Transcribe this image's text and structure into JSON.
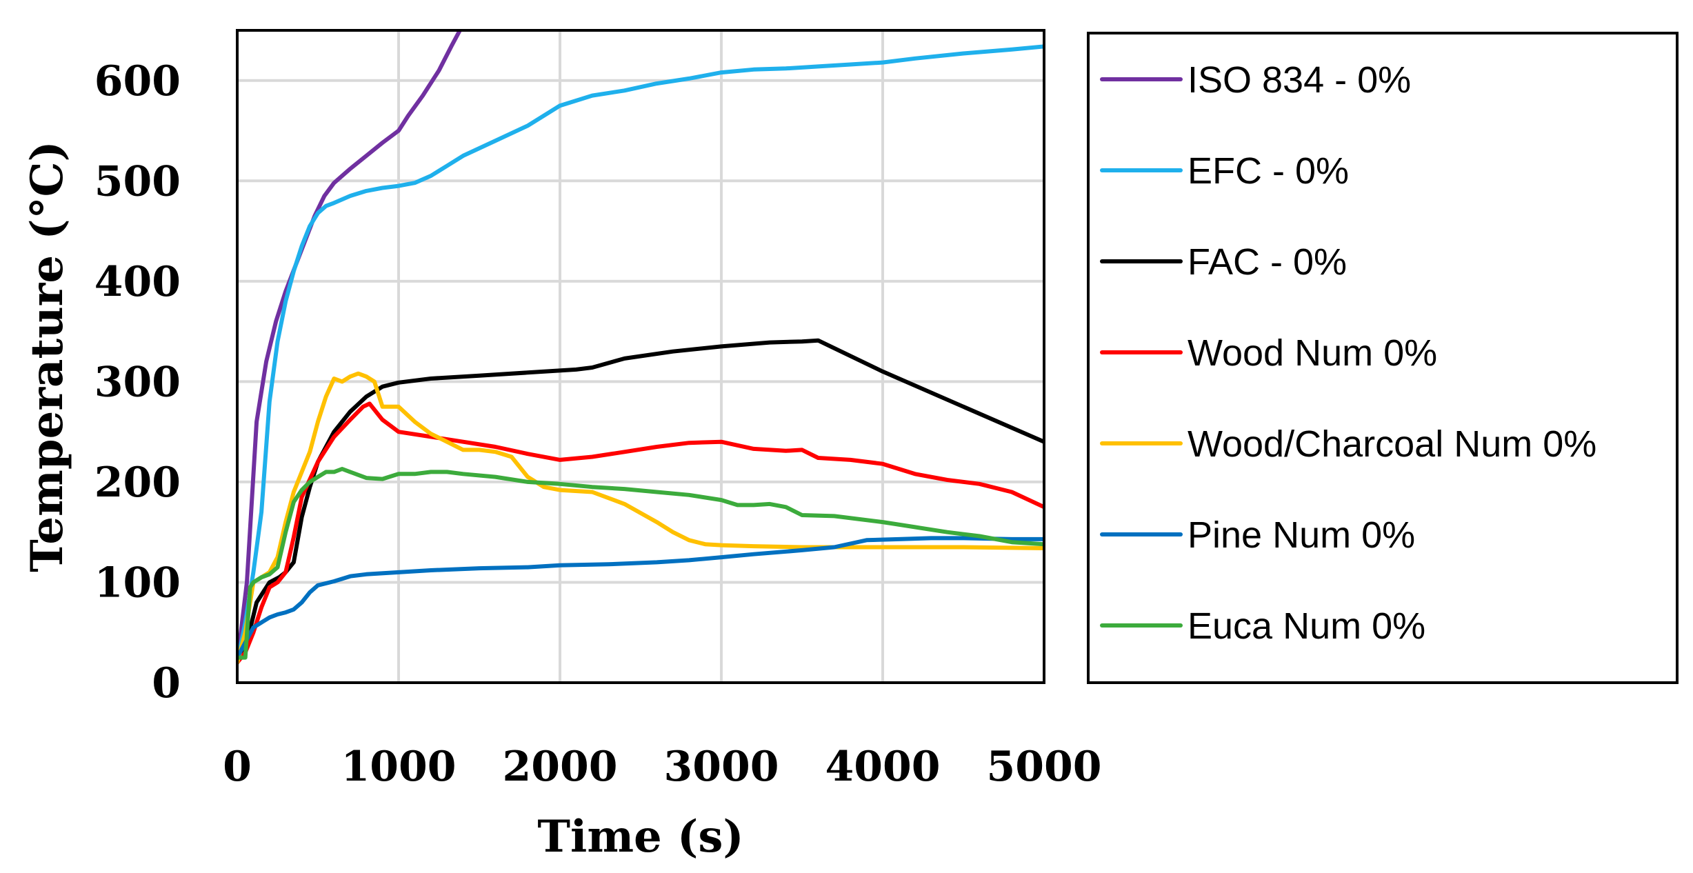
{
  "chart_data": {
    "type": "line",
    "title": "",
    "xlabel": "Time (s)",
    "ylabel": "Temperature (°C)",
    "xlim": [
      0,
      5000
    ],
    "ylim": [
      0,
      650
    ],
    "x_ticks": [
      0,
      1000,
      2000,
      3000,
      4000,
      5000
    ],
    "y_ticks": [
      0,
      100,
      200,
      300,
      400,
      500,
      600
    ],
    "x_tick_labels": [
      "0",
      "1000",
      "2000",
      "3000",
      "4000",
      "5000"
    ],
    "y_tick_labels": [
      "0",
      "100",
      "200",
      "300",
      "400",
      "500",
      "600"
    ],
    "grid": true,
    "legend_position": "right",
    "series": [
      {
        "name": "ISO 834 - 0%",
        "color": "#7030a0",
        "points": [
          [
            0,
            20
          ],
          [
            60,
            100
          ],
          [
            120,
            260
          ],
          [
            180,
            320
          ],
          [
            240,
            360
          ],
          [
            300,
            390
          ],
          [
            360,
            415
          ],
          [
            420,
            440
          ],
          [
            480,
            465
          ],
          [
            540,
            485
          ],
          [
            600,
            498
          ],
          [
            700,
            512
          ],
          [
            800,
            525
          ],
          [
            900,
            538
          ],
          [
            1000,
            550
          ],
          [
            1060,
            565
          ],
          [
            1150,
            585
          ],
          [
            1250,
            610
          ],
          [
            1330,
            635
          ],
          [
            1380,
            650
          ]
        ]
      },
      {
        "name": "EFC - 0%",
        "color": "#1fb0ec",
        "points": [
          [
            0,
            20
          ],
          [
            50,
            60
          ],
          [
            100,
            110
          ],
          [
            150,
            170
          ],
          [
            200,
            280
          ],
          [
            250,
            340
          ],
          [
            300,
            380
          ],
          [
            350,
            410
          ],
          [
            400,
            435
          ],
          [
            450,
            455
          ],
          [
            500,
            468
          ],
          [
            550,
            475
          ],
          [
            600,
            478
          ],
          [
            700,
            485
          ],
          [
            800,
            490
          ],
          [
            900,
            493
          ],
          [
            1000,
            495
          ],
          [
            1100,
            498
          ],
          [
            1200,
            505
          ],
          [
            1300,
            515
          ],
          [
            1400,
            525
          ],
          [
            1600,
            540
          ],
          [
            1800,
            555
          ],
          [
            2000,
            575
          ],
          [
            2200,
            585
          ],
          [
            2400,
            590
          ],
          [
            2600,
            597
          ],
          [
            2800,
            602
          ],
          [
            3000,
            608
          ],
          [
            3200,
            611
          ],
          [
            3400,
            612
          ],
          [
            3600,
            614
          ],
          [
            3800,
            616
          ],
          [
            4000,
            618
          ],
          [
            4200,
            622
          ],
          [
            4500,
            627
          ],
          [
            4800,
            631
          ],
          [
            5000,
            634
          ]
        ]
      },
      {
        "name": "FAC - 0%",
        "color": "#000000",
        "points": [
          [
            0,
            20
          ],
          [
            60,
            40
          ],
          [
            120,
            80
          ],
          [
            200,
            100
          ],
          [
            260,
            105
          ],
          [
            300,
            110
          ],
          [
            350,
            120
          ],
          [
            400,
            165
          ],
          [
            450,
            195
          ],
          [
            500,
            220
          ],
          [
            600,
            250
          ],
          [
            700,
            270
          ],
          [
            800,
            285
          ],
          [
            900,
            295
          ],
          [
            1000,
            299
          ],
          [
            1200,
            303
          ],
          [
            1500,
            306
          ],
          [
            1800,
            309
          ],
          [
            2100,
            312
          ],
          [
            2200,
            314
          ],
          [
            2400,
            323
          ],
          [
            2700,
            330
          ],
          [
            3000,
            335
          ],
          [
            3300,
            339
          ],
          [
            3500,
            340
          ],
          [
            3600,
            341
          ],
          [
            4000,
            310
          ],
          [
            4500,
            275
          ],
          [
            5000,
            240
          ]
        ]
      },
      {
        "name": "Wood Num 0%",
        "color": "#ff0000",
        "points": [
          [
            0,
            20
          ],
          [
            50,
            30
          ],
          [
            100,
            50
          ],
          [
            150,
            75
          ],
          [
            200,
            95
          ],
          [
            250,
            100
          ],
          [
            300,
            110
          ],
          [
            350,
            145
          ],
          [
            400,
            185
          ],
          [
            500,
            220
          ],
          [
            600,
            245
          ],
          [
            700,
            262
          ],
          [
            780,
            275
          ],
          [
            820,
            278
          ],
          [
            900,
            262
          ],
          [
            1000,
            250
          ],
          [
            1200,
            245
          ],
          [
            1400,
            240
          ],
          [
            1600,
            235
          ],
          [
            1800,
            228
          ],
          [
            2000,
            222
          ],
          [
            2200,
            225
          ],
          [
            2400,
            230
          ],
          [
            2600,
            235
          ],
          [
            2800,
            239
          ],
          [
            3000,
            240
          ],
          [
            3200,
            233
          ],
          [
            3400,
            231
          ],
          [
            3500,
            232
          ],
          [
            3600,
            224
          ],
          [
            3800,
            222
          ],
          [
            4000,
            218
          ],
          [
            4200,
            208
          ],
          [
            4400,
            202
          ],
          [
            4600,
            198
          ],
          [
            4800,
            190
          ],
          [
            5000,
            175
          ]
        ]
      },
      {
        "name": "Wood/Charcoal Num 0%",
        "color": "#ffc000",
        "points": [
          [
            0,
            20
          ],
          [
            50,
            50
          ],
          [
            100,
            100
          ],
          [
            150,
            105
          ],
          [
            200,
            110
          ],
          [
            250,
            125
          ],
          [
            300,
            160
          ],
          [
            350,
            190
          ],
          [
            400,
            210
          ],
          [
            450,
            230
          ],
          [
            500,
            260
          ],
          [
            550,
            285
          ],
          [
            600,
            303
          ],
          [
            650,
            300
          ],
          [
            700,
            305
          ],
          [
            750,
            308
          ],
          [
            800,
            305
          ],
          [
            850,
            300
          ],
          [
            900,
            275
          ],
          [
            1000,
            275
          ],
          [
            1100,
            260
          ],
          [
            1200,
            248
          ],
          [
            1300,
            240
          ],
          [
            1400,
            232
          ],
          [
            1500,
            232
          ],
          [
            1600,
            230
          ],
          [
            1700,
            225
          ],
          [
            1800,
            205
          ],
          [
            1900,
            195
          ],
          [
            2000,
            192
          ],
          [
            2200,
            190
          ],
          [
            2400,
            178
          ],
          [
            2600,
            160
          ],
          [
            2700,
            150
          ],
          [
            2800,
            142
          ],
          [
            2900,
            138
          ],
          [
            3000,
            137
          ],
          [
            3200,
            136
          ],
          [
            3500,
            135
          ],
          [
            4000,
            135
          ],
          [
            4500,
            135
          ],
          [
            5000,
            134
          ]
        ]
      },
      {
        "name": "Pine Num 0%",
        "color": "#0070c0",
        "points": [
          [
            0,
            25
          ],
          [
            50,
            40
          ],
          [
            100,
            55
          ],
          [
            150,
            60
          ],
          [
            200,
            65
          ],
          [
            250,
            68
          ],
          [
            300,
            70
          ],
          [
            350,
            73
          ],
          [
            400,
            80
          ],
          [
            450,
            90
          ],
          [
            500,
            97
          ],
          [
            600,
            101
          ],
          [
            700,
            106
          ],
          [
            800,
            108
          ],
          [
            1000,
            110
          ],
          [
            1200,
            112
          ],
          [
            1500,
            114
          ],
          [
            1800,
            115
          ],
          [
            2000,
            117
          ],
          [
            2300,
            118
          ],
          [
            2600,
            120
          ],
          [
            2800,
            122
          ],
          [
            3000,
            125
          ],
          [
            3200,
            128
          ],
          [
            3500,
            132
          ],
          [
            3700,
            135
          ],
          [
            3900,
            142
          ],
          [
            4100,
            143
          ],
          [
            4300,
            144
          ],
          [
            4500,
            144
          ],
          [
            4800,
            143
          ],
          [
            5000,
            143
          ]
        ]
      },
      {
        "name": "Euca Num 0%",
        "color": "#3cab3c",
        "points": [
          [
            0,
            25
          ],
          [
            50,
            25
          ],
          [
            80,
            95
          ],
          [
            100,
            100
          ],
          [
            150,
            105
          ],
          [
            200,
            108
          ],
          [
            250,
            115
          ],
          [
            300,
            150
          ],
          [
            350,
            180
          ],
          [
            400,
            192
          ],
          [
            450,
            200
          ],
          [
            500,
            205
          ],
          [
            550,
            210
          ],
          [
            600,
            210
          ],
          [
            650,
            213
          ],
          [
            700,
            210
          ],
          [
            800,
            204
          ],
          [
            900,
            203
          ],
          [
            1000,
            208
          ],
          [
            1100,
            208
          ],
          [
            1200,
            210
          ],
          [
            1300,
            210
          ],
          [
            1400,
            208
          ],
          [
            1600,
            205
          ],
          [
            1800,
            200
          ],
          [
            2000,
            198
          ],
          [
            2200,
            195
          ],
          [
            2400,
            193
          ],
          [
            2600,
            190
          ],
          [
            2800,
            187
          ],
          [
            3000,
            182
          ],
          [
            3100,
            177
          ],
          [
            3200,
            177
          ],
          [
            3300,
            178
          ],
          [
            3400,
            175
          ],
          [
            3500,
            167
          ],
          [
            3700,
            166
          ],
          [
            4000,
            160
          ],
          [
            4200,
            155
          ],
          [
            4400,
            150
          ],
          [
            4600,
            146
          ],
          [
            4800,
            140
          ],
          [
            5000,
            138
          ]
        ]
      }
    ]
  }
}
